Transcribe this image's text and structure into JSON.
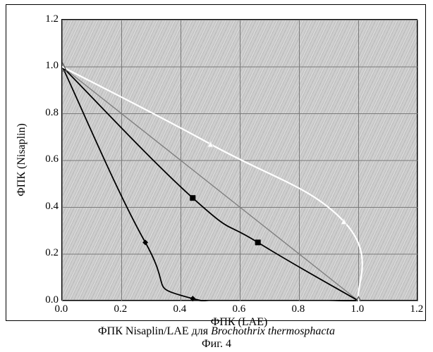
{
  "chart": {
    "type": "line",
    "xlim": [
      0.0,
      1.2
    ],
    "ylim": [
      0.0,
      1.2
    ],
    "xtick_step": 0.2,
    "ytick_step": 0.2,
    "xticks": [
      "0.0",
      "0.2",
      "0.4",
      "0.6",
      "0.8",
      "1.0",
      "1.2"
    ],
    "yticks": [
      "0.0",
      "0.2",
      "0.4",
      "0.6",
      "0.8",
      "1.0",
      "1.2"
    ],
    "xlabel": "ФПК (LAE)",
    "ylabel": "ФПК (Nisaplin)",
    "grid_color": "#7a7a7a",
    "plot_bg": "#c9c9c9",
    "series": [
      {
        "name": "upper-curve",
        "color": "#ffffff",
        "marker": "triangle",
        "marker_size": 8,
        "line_width": 2.2,
        "points": [
          [
            0.0,
            1.0
          ],
          [
            0.5,
            0.67
          ],
          [
            0.95,
            0.34
          ],
          [
            1.0,
            0.0
          ]
        ],
        "end_markers": [
          [
            0.0,
            1.0
          ],
          [
            1.0,
            0.0
          ]
        ],
        "end_marker_shape": "triangle-open"
      },
      {
        "name": "diagonal-reference",
        "color": "#808080",
        "marker": "none",
        "line_width": 1.4,
        "points": [
          [
            0.0,
            1.0
          ],
          [
            1.0,
            0.0
          ]
        ]
      },
      {
        "name": "middle-curve",
        "color": "#000000",
        "marker": "square",
        "marker_size": 8,
        "line_width": 1.8,
        "points": [
          [
            0.0,
            1.0
          ],
          [
            0.44,
            0.44
          ],
          [
            0.66,
            0.25
          ],
          [
            1.0,
            0.0
          ]
        ]
      },
      {
        "name": "lower-curve",
        "color": "#000000",
        "marker": "diamond",
        "marker_size": 8,
        "line_width": 1.8,
        "points": [
          [
            0.0,
            1.0
          ],
          [
            0.28,
            0.25
          ],
          [
            0.44,
            0.01
          ],
          [
            1.0,
            0.0
          ]
        ]
      }
    ]
  },
  "caption": {
    "line1_prefix": "ФПК Nisaplin/LAE для ",
    "line1_italic": "Brochothrix thermosphacta",
    "line2": "Фиг. 4"
  }
}
